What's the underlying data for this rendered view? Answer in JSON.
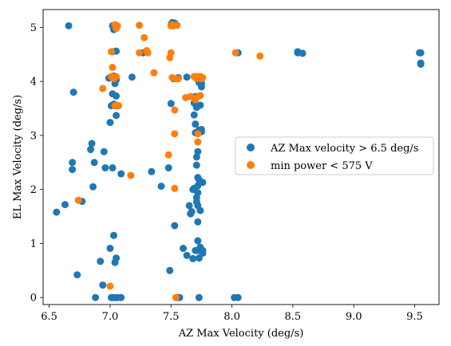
{
  "chart_data": {
    "type": "scatter",
    "xlabel": "AZ Max Velocity (deg/s)",
    "ylabel": "EL Max Velocity (deg/s)",
    "xlim": [
      6.45,
      9.7
    ],
    "ylim": [
      -0.13,
      5.33
    ],
    "xticks": [
      6.5,
      7.0,
      7.5,
      8.0,
      8.5,
      9.0,
      9.5
    ],
    "xtick_labels": [
      "6.5",
      "7.0",
      "7.5",
      "8.0",
      "8.5",
      "9.0",
      "9.5"
    ],
    "yticks": [
      0,
      1,
      2,
      3,
      4,
      5
    ],
    "ytick_labels": [
      "0",
      "1",
      "2",
      "3",
      "4",
      "5"
    ],
    "grid": false,
    "legend_position": "center-right",
    "series": [
      {
        "name": "AZ Max velocity > 6.5 deg/s",
        "color": "#1f77b4",
        "points": [
          [
            6.66,
            5.03
          ],
          [
            6.7,
            3.8
          ],
          [
            6.69,
            2.5
          ],
          [
            6.69,
            2.37
          ],
          [
            6.56,
            1.58
          ],
          [
            6.63,
            1.72
          ],
          [
            6.73,
            0.42
          ],
          [
            6.85,
            2.85
          ],
          [
            6.84,
            2.74
          ],
          [
            6.87,
            2.5
          ],
          [
            6.86,
            2.05
          ],
          [
            6.77,
            1.78
          ],
          [
            6.92,
            0.67
          ],
          [
            6.94,
            0.23
          ],
          [
            6.88,
            0.0
          ],
          [
            6.95,
            2.7
          ],
          [
            6.96,
            2.4
          ],
          [
            7.0,
            3.24
          ],
          [
            7.01,
            3.55
          ],
          [
            7.0,
            0.91
          ],
          [
            7.01,
            0.0
          ],
          [
            7.02,
            0.0
          ],
          [
            7.02,
            5.03
          ],
          [
            7.03,
            4.96
          ],
          [
            7.02,
            4.55
          ],
          [
            7.05,
            4.56
          ],
          [
            7.03,
            4.1
          ],
          [
            7.05,
            4.03
          ],
          [
            7.04,
            3.96
          ],
          [
            7.02,
            3.77
          ],
          [
            7.05,
            3.73
          ],
          [
            7.03,
            3.58
          ],
          [
            7.06,
            3.55
          ],
          [
            7.05,
            3.37
          ],
          [
            7.02,
            2.4
          ],
          [
            7.03,
            1.15
          ],
          [
            7.05,
            0.73
          ],
          [
            7.04,
            0.65
          ],
          [
            7.04,
            0.0
          ],
          [
            7.06,
            0.0
          ],
          [
            7.09,
            2.29
          ],
          [
            7.09,
            0.0
          ],
          [
            6.99,
            4.06
          ],
          [
            7.18,
            4.08
          ],
          [
            7.27,
            4.53
          ],
          [
            7.34,
            2.33
          ],
          [
            7.42,
            2.06
          ],
          [
            7.49,
            0.5
          ],
          [
            7.48,
            2.4
          ],
          [
            7.5,
            3.59
          ],
          [
            7.52,
            4.05
          ],
          [
            7.5,
            5.05
          ],
          [
            7.51,
            5.09
          ],
          [
            7.53,
            1.33
          ],
          [
            7.55,
            0.0
          ],
          [
            7.57,
            0.0
          ],
          [
            7.53,
            5.08
          ],
          [
            7.56,
            4.07
          ],
          [
            7.6,
            0.91
          ],
          [
            7.63,
            0.78
          ],
          [
            7.63,
            4.08
          ],
          [
            7.65,
            1.7
          ],
          [
            7.66,
            1.55
          ],
          [
            7.67,
            1.59
          ],
          [
            7.68,
            0.72
          ],
          [
            7.68,
            2.0
          ],
          [
            7.69,
            2.02
          ],
          [
            7.69,
            3.38
          ],
          [
            7.69,
            3.6
          ],
          [
            7.7,
            3.7
          ],
          [
            7.7,
            3.72
          ],
          [
            7.7,
            3.05
          ],
          [
            7.7,
            3.21
          ],
          [
            7.71,
            2.45
          ],
          [
            7.71,
            2.6
          ],
          [
            7.71,
            1.85
          ],
          [
            7.71,
            1.77
          ],
          [
            7.72,
            2.7
          ],
          [
            7.72,
            1.94
          ],
          [
            7.72,
            2.22
          ],
          [
            7.72,
            1.7
          ],
          [
            7.72,
            0.87
          ],
          [
            7.72,
            1.05
          ],
          [
            7.72,
            1.4
          ],
          [
            7.72,
            2.07
          ],
          [
            7.73,
            2.18
          ],
          [
            7.73,
            3.98
          ],
          [
            7.73,
            3.1
          ],
          [
            7.73,
            4.0
          ],
          [
            7.73,
            0.73
          ],
          [
            7.73,
            0.0
          ],
          [
            7.74,
            0.93
          ],
          [
            7.74,
            1.61
          ],
          [
            7.74,
            3.56
          ],
          [
            7.75,
            3.07
          ],
          [
            7.75,
            3.11
          ],
          [
            7.75,
            3.9
          ],
          [
            7.75,
            3.96
          ],
          [
            7.75,
            4.04
          ],
          [
            7.76,
            0.87
          ],
          [
            7.76,
            0.82
          ],
          [
            7.76,
            2.13
          ],
          [
            7.7,
            0.87
          ],
          [
            7.71,
            3.52
          ],
          [
            8.02,
            0.0
          ],
          [
            8.05,
            0.0
          ],
          [
            8.05,
            4.53
          ],
          [
            8.54,
            4.53
          ],
          [
            8.54,
            4.55
          ],
          [
            8.58,
            4.52
          ],
          [
            9.54,
            4.53
          ],
          [
            9.55,
            4.53
          ],
          [
            9.55,
            4.34
          ],
          [
            9.55,
            4.32
          ]
        ]
      },
      {
        "name": "min power < 575 V",
        "color": "#ff7f0e",
        "points": [
          [
            6.74,
            1.8
          ],
          [
            6.94,
            3.87
          ],
          [
            7.0,
            0.21
          ],
          [
            7.01,
            4.55
          ],
          [
            7.02,
            4.26
          ],
          [
            7.03,
            4.05
          ],
          [
            7.04,
            3.55
          ],
          [
            7.04,
            5.05
          ],
          [
            7.05,
            4.09
          ],
          [
            7.05,
            4.98
          ],
          [
            7.06,
            5.03
          ],
          [
            7.07,
            3.55
          ],
          [
            7.05,
            3.56
          ],
          [
            7.01,
            4.09
          ],
          [
            7.17,
            2.26
          ],
          [
            7.24,
            5.04
          ],
          [
            7.24,
            4.53
          ],
          [
            7.28,
            4.81
          ],
          [
            7.3,
            4.57
          ],
          [
            7.31,
            4.53
          ],
          [
            7.36,
            4.16
          ],
          [
            7.48,
            2.64
          ],
          [
            7.49,
            4.44
          ],
          [
            7.5,
            4.53
          ],
          [
            7.5,
            5.03
          ],
          [
            7.51,
            4.07
          ],
          [
            7.51,
            5.05
          ],
          [
            7.52,
            5.03
          ],
          [
            7.53,
            2.02
          ],
          [
            7.53,
            3.03
          ],
          [
            7.53,
            3.47
          ],
          [
            7.54,
            0.0
          ],
          [
            7.54,
            4.05
          ],
          [
            7.55,
            5.04
          ],
          [
            7.56,
            4.05
          ],
          [
            7.62,
            3.7
          ],
          [
            7.66,
            3.72
          ],
          [
            7.69,
            4.09
          ],
          [
            7.7,
            3.66
          ],
          [
            7.71,
            3.7
          ],
          [
            7.71,
            4.09
          ],
          [
            7.71,
            4.05
          ],
          [
            7.72,
            2.88
          ],
          [
            7.72,
            3.03
          ],
          [
            7.74,
            3.74
          ],
          [
            7.74,
            4.09
          ],
          [
            7.75,
            4.05
          ],
          [
            7.76,
            4.07
          ],
          [
            8.03,
            4.53
          ],
          [
            8.23,
            4.47
          ]
        ]
      }
    ]
  }
}
